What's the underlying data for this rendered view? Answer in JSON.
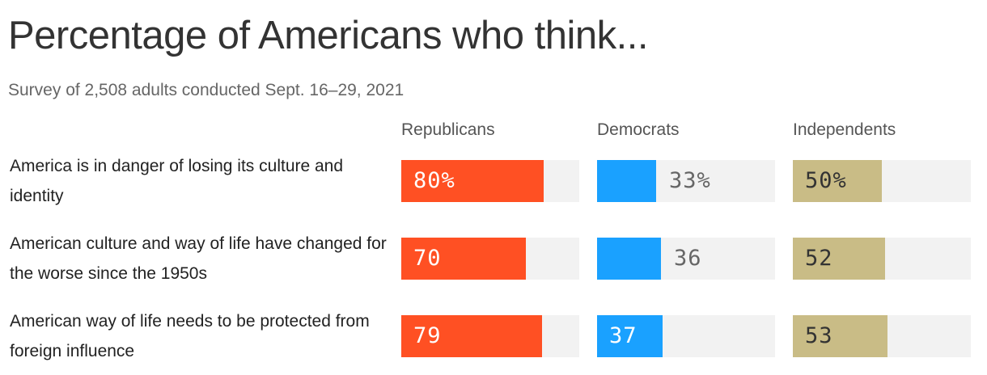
{
  "title": "Percentage of Americans who think...",
  "subtitle": "Survey of 2,508 adults conducted Sept. 16–29, 2021",
  "chart_data": {
    "type": "bar",
    "orientation": "horizontal",
    "layout": "small-multiples",
    "xlim": [
      0,
      100
    ],
    "categories": [
      "America is in danger of losing its culture and identity",
      "American culture and way of life have changed for the worse since the 1950s",
      "American way of life needs to be protected from foreign influence"
    ],
    "series": [
      {
        "name": "Republicans",
        "color": "#ff5023",
        "text_color": "#ffffff",
        "values": [
          80,
          70,
          79
        ],
        "labels": [
          "80%",
          "70",
          "79"
        ]
      },
      {
        "name": "Democrats",
        "color": "#1aa1ff",
        "text_color": "#ffffff",
        "values": [
          33,
          36,
          37
        ],
        "labels": [
          "33%",
          "36",
          "37"
        ]
      },
      {
        "name": "Independents",
        "color": "#c9bc86",
        "text_color": "#333333",
        "values": [
          50,
          52,
          53
        ],
        "labels": [
          "50%",
          "52",
          "53"
        ]
      }
    ],
    "track_color": "#f2f2f2",
    "outside_label_color": "#666666"
  }
}
